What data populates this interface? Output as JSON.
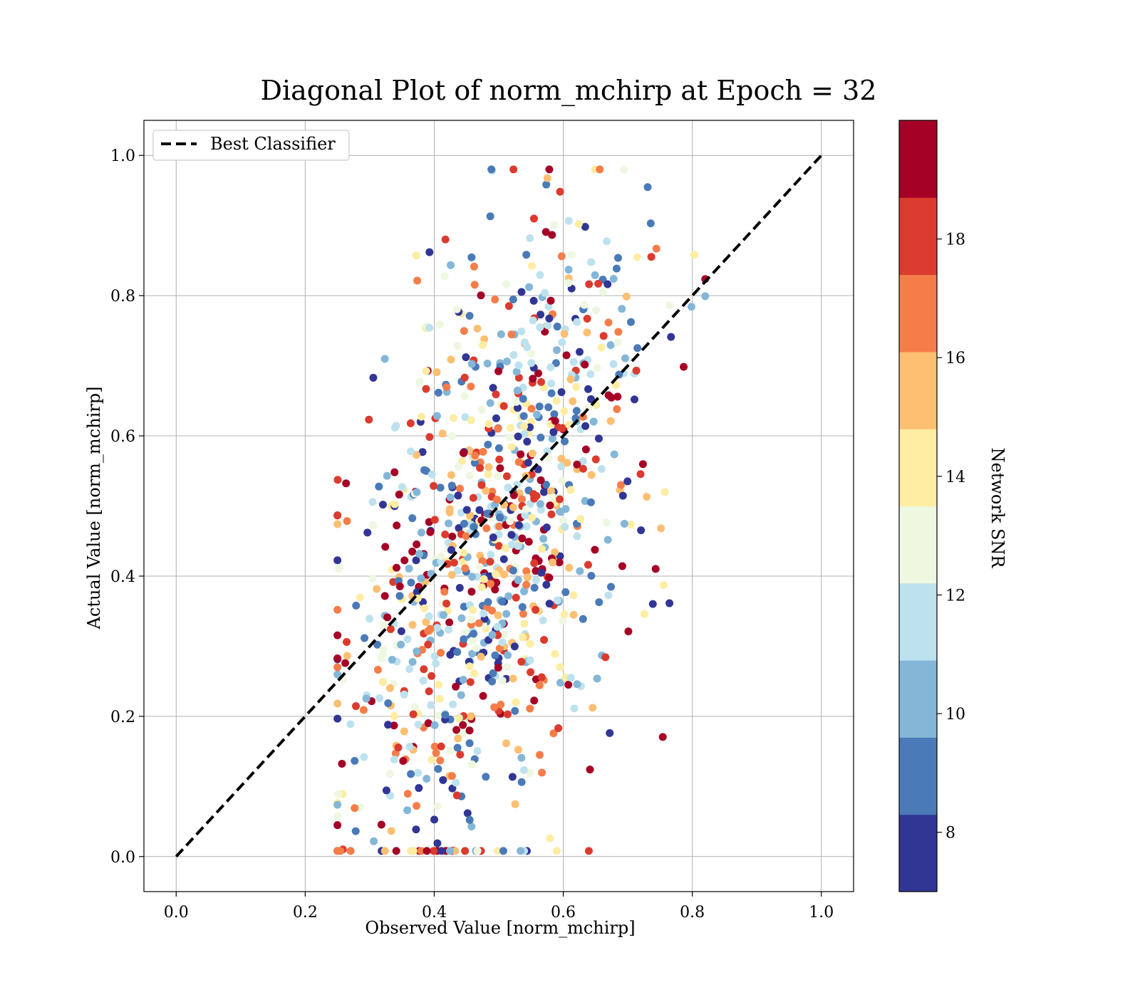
{
  "chart_data": {
    "type": "scatter",
    "title": "Diagonal Plot of norm_mchirp at Epoch = 32",
    "xlabel": "Observed Value [norm_mchirp]",
    "ylabel": "Actual Value [norm_mchirp]",
    "xlim": [
      -0.05,
      1.05
    ],
    "ylim": [
      -0.05,
      1.05
    ],
    "xticks": [
      "0.0",
      "0.2",
      "0.4",
      "0.6",
      "0.8",
      "1.0"
    ],
    "yticks": [
      "0.0",
      "0.2",
      "0.4",
      "0.6",
      "0.8",
      "1.0"
    ],
    "grid": true,
    "legend": {
      "placement": "upper-left",
      "entries": [
        "Best Classifier"
      ]
    },
    "reference_line": {
      "name": "Best Classifier",
      "style": "dashed",
      "color": "#000000",
      "from": [
        0,
        0
      ],
      "to": [
        1,
        1
      ]
    },
    "colorbar": {
      "label": "Network SNR",
      "range": [
        7,
        20
      ],
      "ticks": [
        "8",
        "10",
        "12",
        "14",
        "16",
        "18"
      ],
      "colors": [
        "#313695",
        "#4575b4",
        "#74add1",
        "#abd9e9",
        "#e0f3f8",
        "#fee090",
        "#fdae61",
        "#f46d43",
        "#d73027",
        "#a50026"
      ],
      "bin_colors_bottom_to_top": [
        "#313695",
        "#4a7ab7",
        "#84b6d7",
        "#bde2ee",
        "#eef7e0",
        "#feeda2",
        "#fdbf71",
        "#f57d4a",
        "#db3b2e",
        "#a50026"
      ]
    },
    "series": [
      {
        "x_center": 0.49,
        "x_sd": 0.1,
        "y_center": 0.45,
        "y_sd": 0.22,
        "count": 1000,
        "x_range": [
          0.25,
          0.82
        ],
        "y_range": [
          0.008,
          0.98
        ],
        "snr_range": [
          7,
          20
        ]
      }
    ]
  }
}
